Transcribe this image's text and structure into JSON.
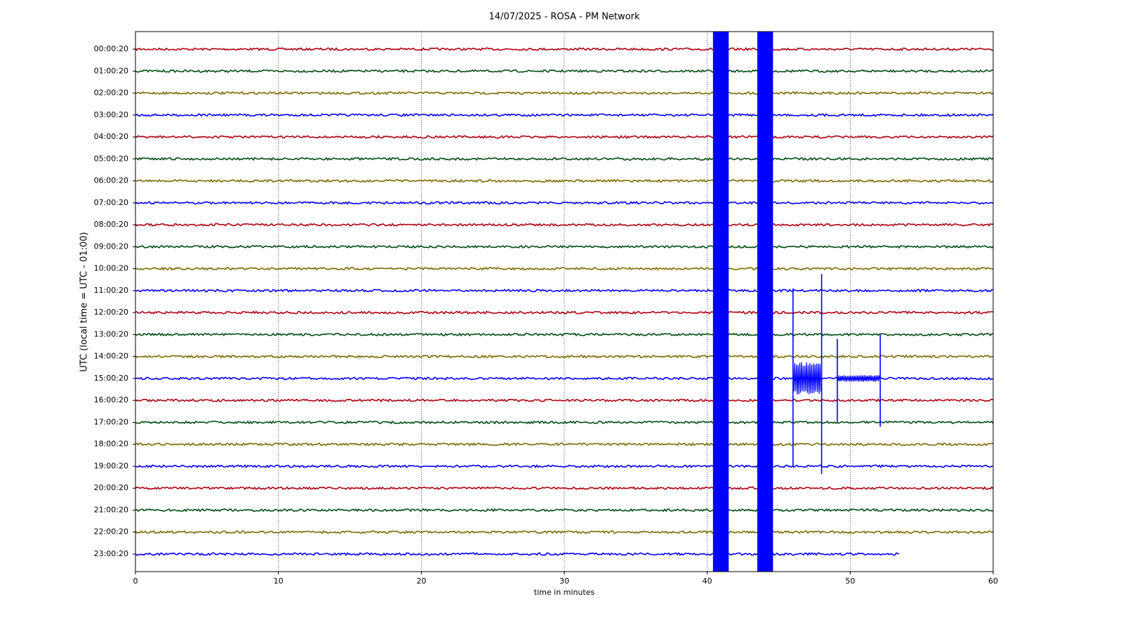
{
  "chart_data": {
    "type": "helicorder",
    "title": "14/07/2025 - ROSA - PM Network",
    "xlabel": "time in minutes",
    "ylabel": "UTC (local time = UTC - 01:00)",
    "categories": [
      "00:00:20",
      "01:00:20",
      "02:00:20",
      "03:00:20",
      "04:00:20",
      "05:00:20",
      "06:00:20",
      "07:00:20",
      "08:00:20",
      "09:00:20",
      "10:00:20",
      "11:00:20",
      "12:00:20",
      "13:00:20",
      "14:00:20",
      "15:00:20",
      "16:00:20",
      "17:00:20",
      "18:00:20",
      "19:00:20",
      "20:00:20",
      "21:00:20",
      "22:00:20",
      "23:00:20"
    ],
    "colors": [
      "#b00010",
      "#004d10",
      "#7a6a00",
      "#0000ff"
    ],
    "trace_end": [
      60,
      60,
      60,
      60,
      60,
      60,
      60,
      60,
      60,
      60,
      60,
      60,
      60,
      60,
      60,
      60,
      60,
      60,
      60,
      60,
      60,
      60,
      60,
      53.5
    ],
    "xlim": [
      0,
      60
    ],
    "xticks": [
      0,
      10,
      20,
      30,
      40,
      50,
      60
    ],
    "grid": true,
    "bands": [
      {
        "start": 40.4,
        "end": 41.5,
        "color": "#0000ff"
      },
      {
        "start": 43.5,
        "end": 44.6,
        "color": "#0000ff"
      }
    ],
    "spikes": [
      {
        "x": 46.0,
        "top": 10.9,
        "bottom": 19.0
      },
      {
        "x": 48.0,
        "top": 10.25,
        "bottom": 19.35
      },
      {
        "x": 49.1,
        "top": 13.2,
        "bottom": 17.0
      },
      {
        "x": 52.1,
        "top": 13.0,
        "bottom": 17.2
      }
    ],
    "bursts": [
      {
        "start": 46.0,
        "end": 48.0,
        "row": 15,
        "amplitude": 0.75
      },
      {
        "start": 49.1,
        "end": 52.1,
        "row": 15,
        "amplitude": 0.15
      }
    ]
  }
}
